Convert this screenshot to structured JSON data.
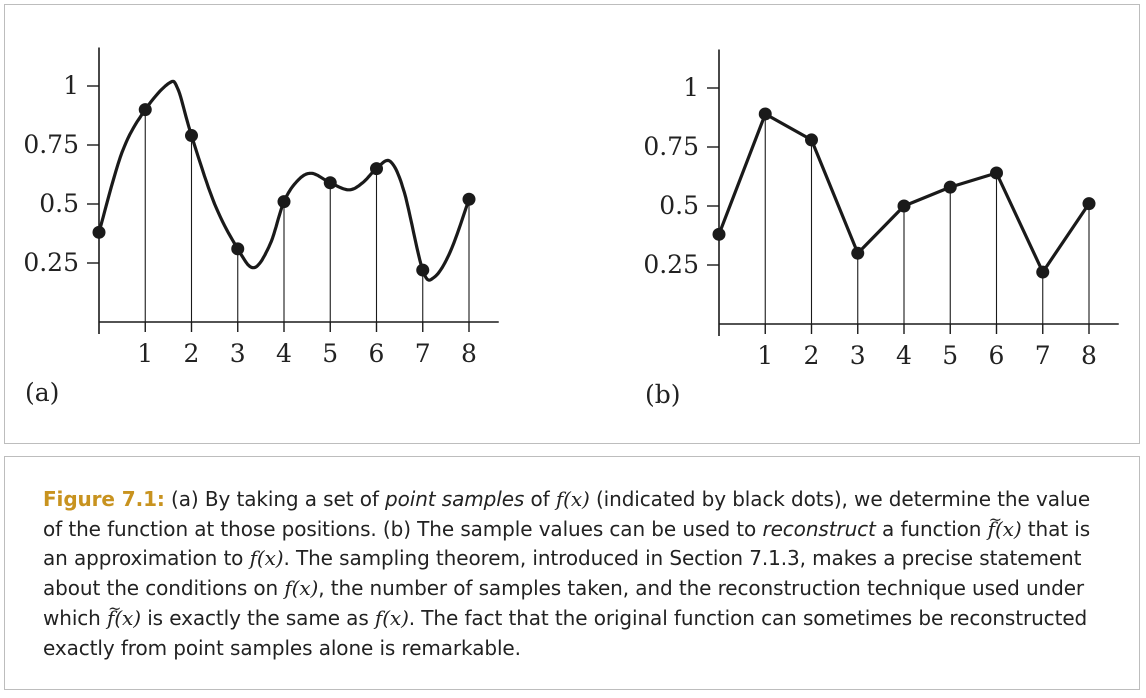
{
  "chart_data": [
    {
      "type": "line",
      "subtitle": "(a)",
      "x": [
        0,
        1,
        2,
        3,
        4,
        5,
        6,
        7,
        8
      ],
      "series": [
        {
          "values": [
            0.38,
            0.9,
            0.79,
            0.31,
            0.51,
            0.59,
            0.65,
            0.22,
            0.52
          ]
        }
      ],
      "curve": "smooth",
      "sample_stems": true,
      "x_ticks": [
        "1",
        "2",
        "3",
        "4",
        "5",
        "6",
        "7",
        "8"
      ],
      "y_ticks": [
        "0.25",
        "0.5",
        "0.75",
        "1"
      ],
      "xlim": [
        0,
        8.6
      ],
      "ylim": [
        -0.05,
        1.18
      ],
      "grid": false
    },
    {
      "type": "line",
      "subtitle": "(b)",
      "x": [
        0,
        1,
        2,
        3,
        4,
        5,
        6,
        7,
        8
      ],
      "series": [
        {
          "values": [
            0.38,
            0.89,
            0.78,
            0.3,
            0.5,
            0.58,
            0.64,
            0.22,
            0.51
          ]
        }
      ],
      "curve": "linear",
      "sample_stems": true,
      "x_ticks": [
        "1",
        "2",
        "3",
        "4",
        "5",
        "6",
        "7",
        "8"
      ],
      "y_ticks": [
        "0.25",
        "0.5",
        "0.75",
        "1"
      ],
      "xlim": [
        0,
        8.6
      ],
      "ylim": [
        -0.05,
        1.18
      ],
      "grid": false
    }
  ],
  "caption": {
    "label": "Figure 7.1:",
    "p1": " (a) By taking a set of ",
    "p2": "point samples",
    "p3": " of ",
    "fx": "f(x)",
    "p4": " (indicated by black dots), we determine the value of the function at those positions. (b) The sample values can be used to ",
    "p5": "reconstruct",
    "p6": " a function ",
    "tilde": "~",
    "f": "f",
    "xarg": "(x)",
    "p7": " that is an approximation to ",
    "p8": ". The sampling theorem, introduced in Section 7.1.3, makes a precise statement about the conditions on ",
    "p9": ", the number of samples taken, and the reconstruction technique used under which ",
    "p10": " is exactly the same as ",
    "p11": ". The fact that the original function can sometimes be reconstructed exactly from point samples alone is remarkable."
  },
  "colors": {
    "ink": "#1a1a1a",
    "accent": "#c8931f",
    "border": "#bdbdbd"
  }
}
